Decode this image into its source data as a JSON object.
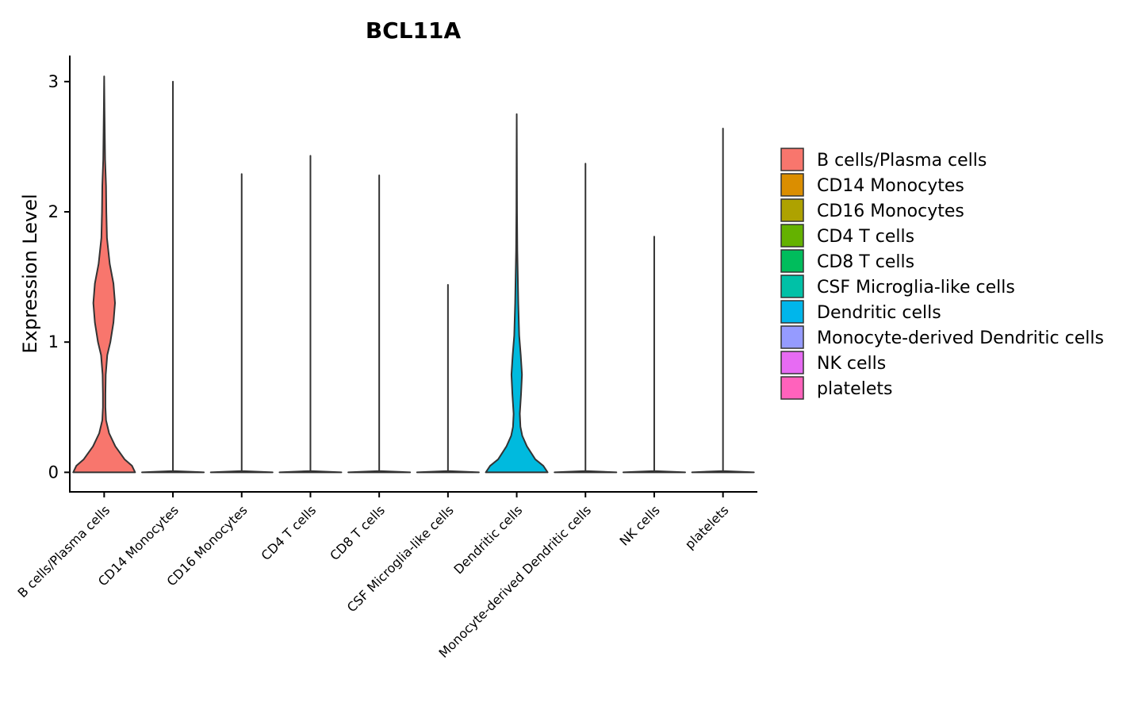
{
  "chart_data": {
    "type": "violin",
    "title": "BCL11A",
    "ylabel": "Expression Level",
    "xlabel": "",
    "ylim": [
      -0.15,
      3.2
    ],
    "yticks": [
      0,
      1,
      2,
      3
    ],
    "grid": false,
    "legend_position": "right",
    "categories": [
      "B cells/Plasma cells",
      "CD14 Monocytes",
      "CD16 Monocytes",
      "CD4 T cells",
      "CD8 T cells",
      "CSF Microglia-like cells",
      "Dendritic cells",
      "Monocyte-derived Dendritic cells",
      "NK cells",
      "platelets"
    ],
    "series": [
      {
        "name": "B cells/Plasma cells",
        "color": "#F8766D",
        "max": 3.04,
        "profile": [
          [
            0,
            1.0
          ],
          [
            0.05,
            0.9
          ],
          [
            0.1,
            0.66
          ],
          [
            0.2,
            0.36
          ],
          [
            0.3,
            0.16
          ],
          [
            0.4,
            0.06
          ],
          [
            0.5,
            0.04
          ],
          [
            0.6,
            0.04
          ],
          [
            0.75,
            0.05
          ],
          [
            0.9,
            0.1
          ],
          [
            1.0,
            0.2
          ],
          [
            1.15,
            0.3
          ],
          [
            1.3,
            0.35
          ],
          [
            1.45,
            0.3
          ],
          [
            1.6,
            0.18
          ],
          [
            1.8,
            0.09
          ],
          [
            2.0,
            0.07
          ],
          [
            2.2,
            0.06
          ],
          [
            2.4,
            0.03
          ],
          [
            2.6,
            0.02
          ],
          [
            2.8,
            0.01
          ],
          [
            3.04,
            0.0
          ]
        ]
      },
      {
        "name": "CD14 Monocytes",
        "color": "#DB8E00",
        "max": 3.0,
        "profile": [
          [
            0,
            1.0
          ],
          [
            0.01,
            0.0
          ],
          [
            3.0,
            0.0
          ]
        ]
      },
      {
        "name": "CD16 Monocytes",
        "color": "#AEA200",
        "max": 2.29,
        "profile": [
          [
            0,
            1.0
          ],
          [
            0.01,
            0.0
          ],
          [
            2.29,
            0.0
          ]
        ]
      },
      {
        "name": "CD4 T cells",
        "color": "#64B200",
        "max": 2.43,
        "profile": [
          [
            0,
            1.0
          ],
          [
            0.01,
            0.0
          ],
          [
            2.43,
            0.0
          ]
        ]
      },
      {
        "name": "CD8 T cells",
        "color": "#00BD5C",
        "max": 2.28,
        "profile": [
          [
            0,
            1.0
          ],
          [
            0.01,
            0.0
          ],
          [
            2.28,
            0.0
          ]
        ]
      },
      {
        "name": "CSF Microglia-like cells",
        "color": "#00C1A7",
        "max": 1.44,
        "profile": [
          [
            0,
            1.0
          ],
          [
            0.01,
            0.0
          ],
          [
            1.44,
            0.0
          ]
        ]
      },
      {
        "name": "Dendritic cells",
        "color": "#00BADE",
        "max": 2.75,
        "profile": [
          [
            0,
            1.0
          ],
          [
            0.05,
            0.86
          ],
          [
            0.1,
            0.6
          ],
          [
            0.2,
            0.33
          ],
          [
            0.28,
            0.18
          ],
          [
            0.35,
            0.12
          ],
          [
            0.45,
            0.1
          ],
          [
            0.6,
            0.14
          ],
          [
            0.75,
            0.17
          ],
          [
            0.9,
            0.13
          ],
          [
            1.05,
            0.08
          ],
          [
            1.3,
            0.05
          ],
          [
            1.5,
            0.035
          ],
          [
            1.7,
            0.02
          ],
          [
            2.0,
            0.01
          ],
          [
            2.4,
            0.005
          ],
          [
            2.75,
            0.0
          ]
        ]
      },
      {
        "name": "Monocyte-derived Dendritic cells",
        "color": "#00A6FF",
        "max": 2.37,
        "profile": [
          [
            0,
            1.0
          ],
          [
            0.01,
            0.0
          ],
          [
            2.37,
            0.0
          ]
        ]
      },
      {
        "name": "NK cells",
        "color": "#B385FF",
        "max": 1.81,
        "profile": [
          [
            0,
            1.0
          ],
          [
            0.01,
            0.0
          ],
          [
            1.81,
            0.0
          ]
        ]
      },
      {
        "name": "platelets",
        "color": "#EF67EB",
        "max": 2.64,
        "profile": [
          [
            0,
            1.0
          ],
          [
            0.01,
            0.0
          ],
          [
            2.64,
            0.0
          ]
        ]
      }
    ],
    "legend": {
      "entries": [
        {
          "label": "B cells/Plasma cells",
          "color": "#F8766D"
        },
        {
          "label": "CD14 Monocytes",
          "color": "#DB8E00"
        },
        {
          "label": "CD16 Monocytes",
          "color": "#AEA200"
        },
        {
          "label": "CD4 T cells",
          "color": "#64B200"
        },
        {
          "label": "CD8 T cells",
          "color": "#00BD5C"
        },
        {
          "label": "CSF Microglia-like cells",
          "color": "#00C1A7"
        },
        {
          "label": "Dendritic cells",
          "color": "#00B6EB"
        },
        {
          "label": "Monocyte-derived Dendritic cells",
          "color": "#959BFF"
        },
        {
          "label": "NK cells",
          "color": "#E76BF3"
        },
        {
          "label": "platelets",
          "color": "#FF62BC"
        }
      ]
    }
  }
}
